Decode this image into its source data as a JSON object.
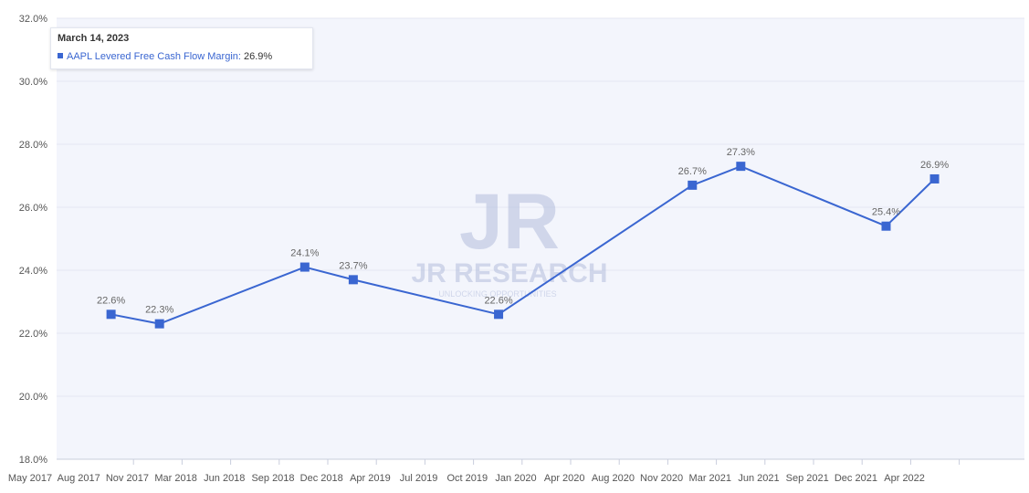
{
  "chart_data": {
    "type": "line",
    "title": "",
    "xlabel": "",
    "ylabel": "",
    "ylim": [
      18.0,
      32.0
    ],
    "y_ticks": [
      "18.0%",
      "20.0%",
      "22.0%",
      "24.0%",
      "26.0%",
      "28.0%",
      "30.0%",
      "32.0%"
    ],
    "x_tick_labels": [
      "May 2017",
      "Aug 2017",
      "Nov 2017",
      "Mar 2018",
      "Jun 2018",
      "Sep 2018",
      "Dec 2018",
      "Apr 2019",
      "Jul 2019",
      "Oct 2019",
      "Jan 2020",
      "Apr 2020",
      "Aug 2020",
      "Nov 2020",
      "Mar 2021",
      "Jun 2021",
      "Sep 2021",
      "Dec 2021",
      "Apr 2022"
    ],
    "grid": true,
    "series": [
      {
        "name": "AAPL Levered Free Cash Flow Margin",
        "color": "#3a66d1",
        "points": [
          {
            "x": "2017-09-30",
            "y": 22.6,
            "label": "22.6%"
          },
          {
            "x": "2017-12-30",
            "y": 22.3,
            "label": "22.3%"
          },
          {
            "x": "2018-09-29",
            "y": 24.1,
            "label": "24.1%"
          },
          {
            "x": "2018-12-29",
            "y": 23.7,
            "label": "23.7%"
          },
          {
            "x": "2019-09-28",
            "y": 22.6,
            "label": "22.6%"
          },
          {
            "x": "2020-09-26",
            "y": 26.7,
            "label": "26.7%"
          },
          {
            "x": "2020-12-26",
            "y": 27.3,
            "label": "27.3%"
          },
          {
            "x": "2021-09-25",
            "y": 25.4,
            "label": "25.4%"
          },
          {
            "x": "2021-12-25",
            "y": 26.9,
            "label": "26.9%"
          }
        ]
      }
    ]
  },
  "tooltip": {
    "date": "March 14, 2023",
    "series": "AAPL Levered Free Cash Flow Margin:",
    "value": "26.9%"
  },
  "watermark": {
    "brand": "JR RESEARCH",
    "tagline": "UNLOCKING OPPORTUNITIES"
  },
  "colors": {
    "plot_bg": "#f3f5fc",
    "grid": "#e4e7f2",
    "axis_text": "#555555",
    "line": "#3a66d1",
    "data_label": "#666666",
    "watermark": "#b4bedd"
  }
}
